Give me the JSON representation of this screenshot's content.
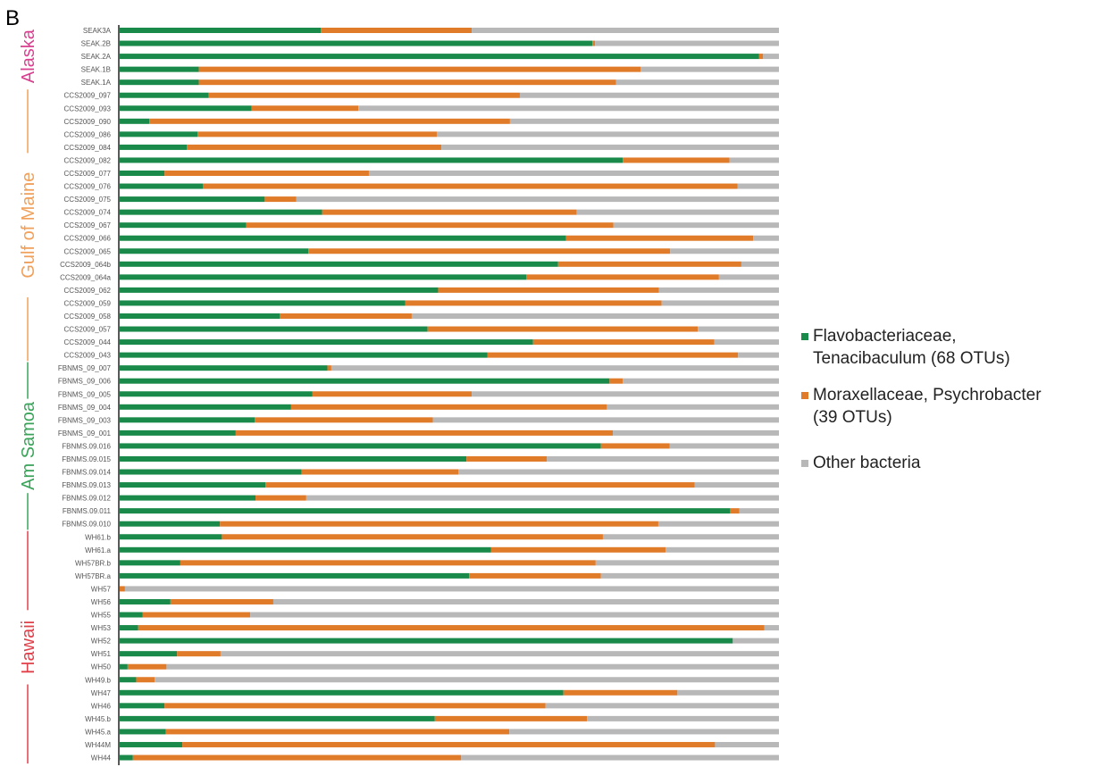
{
  "panel_label": "B",
  "chart_data": {
    "type": "bar",
    "orientation": "horizontal",
    "stacked": true,
    "normalized": true,
    "categories": [
      "SEAK3A",
      "SEAK.2B",
      "SEAK.2A",
      "SEAK.1B",
      "SEAK.1A",
      "CCS2009_097",
      "CCS2009_093",
      "CCS2009_090",
      "CCS2009_086",
      "CCS2009_084",
      "CCS2009_082",
      "CCS2009_077",
      "CCS2009_076",
      "CCS2009_075",
      "CCS2009_074",
      "CCS2009_067",
      "CCS2009_066",
      "CCS2009_065",
      "CCS2009_064b",
      "CCS2009_064a",
      "CCS2009_062",
      "CCS2009_059",
      "CCS2009_058",
      "CCS2009_057",
      "CCS2009_044",
      "CCS2009_043",
      "FBNMS_09_007",
      "FBNMS_09_006",
      "FBNMS_09_005",
      "FBNMS_09_004",
      "FBNMS_09_003",
      "FBNMS_09_001",
      "FBNMS.09.016",
      "FBNMS.09.015",
      "FBNMS.09.014",
      "FBNMS.09.013",
      "FBNMS.09.012",
      "FBNMS.09.011",
      "FBNMS.09.010",
      "WH61.b",
      "WH61.a",
      "WH57BR.b",
      "WH57BR.a",
      "WH57",
      "WH56",
      "WH55",
      "WH53",
      "WH52",
      "WH51",
      "WH50",
      "WH49.b",
      "WH47",
      "WH46",
      "WH45.b",
      "WH45.a",
      "WH44M",
      "WH44"
    ],
    "series": [
      {
        "name": "Flavobacteriaceae, Tenacibaculum (68 OTUs)",
        "color": "#1a8a4a",
        "values": [
          0.305,
          0.717,
          0.97,
          0.12,
          0.12,
          0.135,
          0.2,
          0.045,
          0.118,
          0.102,
          0.763,
          0.068,
          0.126,
          0.22,
          0.307,
          0.192,
          0.677,
          0.286,
          0.665,
          0.617,
          0.483,
          0.433,
          0.243,
          0.467,
          0.627,
          0.558,
          0.315,
          0.743,
          0.292,
          0.26,
          0.205,
          0.176,
          0.73,
          0.526,
          0.276,
          0.221,
          0.206,
          0.926,
          0.152,
          0.155,
          0.563,
          0.092,
          0.53,
          0.0,
          0.077,
          0.035,
          0.028,
          0.93,
          0.087,
          0.012,
          0.025,
          0.673,
          0.068,
          0.478,
          0.07,
          0.095,
          0.02
        ]
      },
      {
        "name": "Moraxellaceae, Psychrobacter (39 OTUs)",
        "color": "#e07b2a",
        "values": [
          0.229,
          0.004,
          0.006,
          0.67,
          0.633,
          0.472,
          0.162,
          0.547,
          0.363,
          0.386,
          0.162,
          0.31,
          0.811,
          0.048,
          0.386,
          0.557,
          0.284,
          0.549,
          0.278,
          0.292,
          0.335,
          0.389,
          0.2,
          0.41,
          0.275,
          0.38,
          0.006,
          0.02,
          0.242,
          0.479,
          0.27,
          0.572,
          0.104,
          0.122,
          0.238,
          0.651,
          0.077,
          0.014,
          0.665,
          0.578,
          0.265,
          0.63,
          0.2,
          0.008,
          0.156,
          0.163,
          0.95,
          0.0,
          0.066,
          0.059,
          0.028,
          0.173,
          0.578,
          0.231,
          0.521,
          0.808,
          0.498
        ]
      },
      {
        "name": "Other bacteria",
        "color": "#b8b8b8",
        "values": [
          0.466,
          0.279,
          0.024,
          0.21,
          0.247,
          0.393,
          0.638,
          0.408,
          0.519,
          0.512,
          0.075,
          0.622,
          0.063,
          0.732,
          0.307,
          0.251,
          0.039,
          0.165,
          0.057,
          0.091,
          0.182,
          0.178,
          0.557,
          0.123,
          0.098,
          0.062,
          0.679,
          0.237,
          0.466,
          0.261,
          0.525,
          0.252,
          0.166,
          0.352,
          0.486,
          0.128,
          0.717,
          0.06,
          0.183,
          0.267,
          0.172,
          0.278,
          0.27,
          0.992,
          0.767,
          0.802,
          0.022,
          0.07,
          0.847,
          0.929,
          0.947,
          0.154,
          0.354,
          0.291,
          0.409,
          0.097,
          0.482
        ]
      }
    ],
    "groups": [
      {
        "label": "Alaska",
        "color": "#d83f8f",
        "start": 0,
        "end": 4
      },
      {
        "label": "Gulf of Maine",
        "color": "#f0a05a",
        "start": 5,
        "end": 25
      },
      {
        "label": "Am Samoa",
        "color": "#3aa35a",
        "start": 26,
        "end": 38
      },
      {
        "label": "Hawaii",
        "color": "#e0404a",
        "start": 39,
        "end": 56
      }
    ],
    "xlim": [
      0,
      1
    ],
    "legend_position": "right"
  }
}
